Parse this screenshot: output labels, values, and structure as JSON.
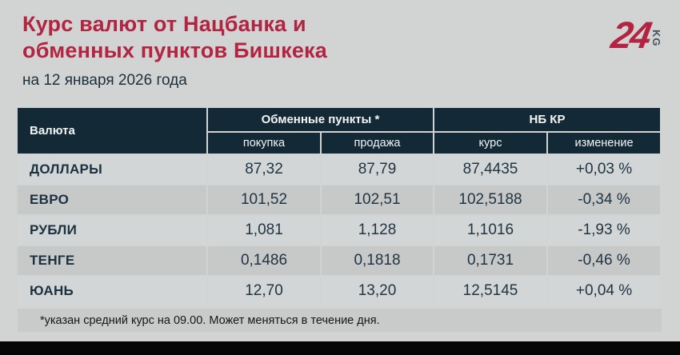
{
  "header": {
    "title_line1": "Курс валют от Нацбанка и",
    "title_line2": "обменных пунктов Бишкека",
    "date_line": "на 12 января 2026 года"
  },
  "logo": {
    "number": "24",
    "country_code": "KG"
  },
  "chart_data": {
    "type": "table",
    "title": "Курс валют от Нацбанка и обменных пунктов Бишкека",
    "subtitle": "на 12 января 2026 года",
    "column_groups": [
      "Обменные пункты *",
      "НБ КР"
    ],
    "columns": [
      "Валюта",
      "покупка",
      "продажа",
      "курс",
      "изменение"
    ],
    "rows": [
      {
        "currency": "ДОЛЛАРЫ",
        "buy": "87,32",
        "sell": "87,79",
        "rate": "87,4435",
        "change": "+0,03 %"
      },
      {
        "currency": "ЕВРО",
        "buy": "101,52",
        "sell": "102,51",
        "rate": "102,5188",
        "change": "-0,34 %"
      },
      {
        "currency": "РУБЛИ",
        "buy": "1,081",
        "sell": "1,128",
        "rate": "1,1016",
        "change": "-1,93 %"
      },
      {
        "currency": "ТЕНГЕ",
        "buy": "0,1486",
        "sell": "0,1818",
        "rate": "0,1731",
        "change": "-0,46 %"
      },
      {
        "currency": "ЮАНЬ",
        "buy": "12,70",
        "sell": "13,20",
        "rate": "12,5145",
        "change": "+0,04 %"
      }
    ]
  },
  "footer": {
    "note": "*указан средний курс на 09.00. Может меняться в течение дня."
  },
  "colors": {
    "accent_red": "#b22441",
    "header_navy": "#132935",
    "text_navy": "#1b3140",
    "background": "#d2d4d4"
  }
}
